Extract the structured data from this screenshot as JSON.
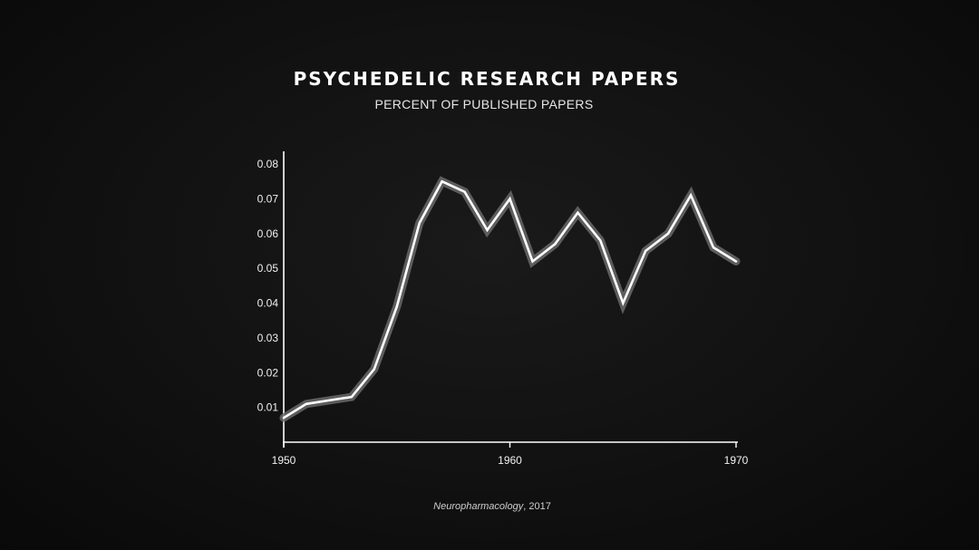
{
  "chart_data": {
    "type": "line",
    "title": "PSYCHEDELIC RESEARCH PAPERS",
    "subtitle": "PERCENT OF PUBLISHED PAPERS",
    "xlabel": "",
    "ylabel": "",
    "xlim": [
      1950,
      1970
    ],
    "ylim": [
      0,
      0.085
    ],
    "x_ticks": [
      "1950",
      "1960",
      "1970"
    ],
    "x_tick_values": [
      1950,
      1960,
      1970
    ],
    "y_ticks": [
      "0.01",
      "0.02",
      "0.03",
      "0.04",
      "0.05",
      "0.06",
      "0.07",
      "0.08"
    ],
    "y_tick_values": [
      0.01,
      0.02,
      0.03,
      0.04,
      0.05,
      0.06,
      0.07,
      0.08
    ],
    "grid": false,
    "legend": "none",
    "colors": {
      "line": "#ffffff",
      "glow": "#6a6a6a",
      "axis": "#ffffff",
      "background": "#111111"
    },
    "series": [
      {
        "x": [
          1950,
          1951,
          1952,
          1953,
          1954,
          1955,
          1956,
          1957,
          1958,
          1959,
          1960,
          1961,
          1962,
          1963,
          1964,
          1965,
          1966,
          1967,
          1968,
          1969,
          1970
        ],
        "values": [
          0.007,
          0.011,
          0.012,
          0.013,
          0.021,
          0.039,
          0.063,
          0.075,
          0.072,
          0.061,
          0.07,
          0.052,
          0.057,
          0.066,
          0.058,
          0.04,
          0.055,
          0.06,
          0.071,
          0.056,
          0.052
        ]
      }
    ]
  },
  "source": {
    "journal": "Neuropharmacology",
    "rest": ", 2017"
  }
}
